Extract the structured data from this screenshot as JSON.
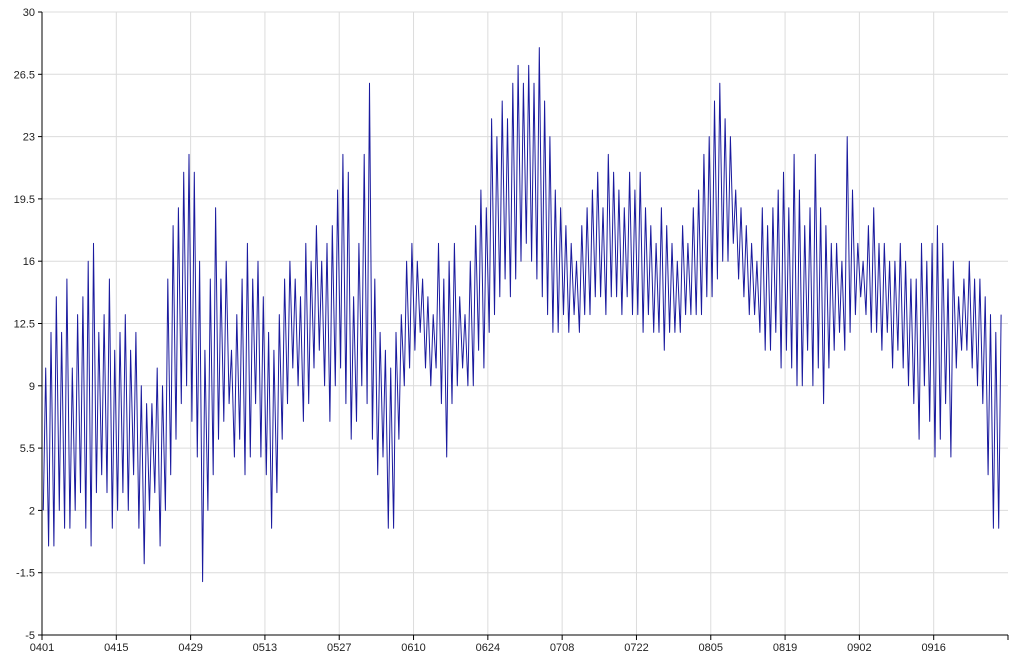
{
  "colors": {
    "background": "#ffffff",
    "grid": "#dcdcdc",
    "axis": "#000000",
    "series": "#1a1a9e"
  },
  "chart_data": {
    "type": "line",
    "title": "",
    "xlabel": "",
    "ylabel": "",
    "ylim": [
      -5,
      30
    ],
    "xlim": [
      "0401",
      "0929"
    ],
    "grid": true,
    "legend": "none",
    "yticks": [
      "-5",
      "-1.5",
      "2",
      "5.5",
      "9",
      "12.5",
      "16",
      "19.5",
      "23",
      "26.5",
      "30"
    ],
    "xticks": [
      "0401",
      "0415",
      "0429",
      "0513",
      "0527",
      "0610",
      "0624",
      "0708",
      "0722",
      "0805",
      "0819",
      "0902",
      "0916"
    ],
    "series": [
      {
        "x": [
          "0401",
          "0402",
          "0403",
          "0404",
          "0405",
          "0406",
          "0407",
          "0408",
          "0409",
          "0410",
          "0411",
          "0412",
          "0413",
          "0414",
          "0415",
          "0416",
          "0417",
          "0418",
          "0419",
          "0420",
          "0421",
          "0422",
          "0423",
          "0424",
          "0425",
          "0426",
          "0427",
          "0428",
          "0429",
          "0430",
          "0501",
          "0502",
          "0503",
          "0504",
          "0505",
          "0506",
          "0507",
          "0508",
          "0509",
          "0510",
          "0511",
          "0512",
          "0513",
          "0514",
          "0515",
          "0516",
          "0517",
          "0518",
          "0519",
          "0520",
          "0521",
          "0522",
          "0523",
          "0524",
          "0525",
          "0526",
          "0527",
          "0528",
          "0529",
          "0530",
          "0531",
          "0601",
          "0602",
          "0603",
          "0604",
          "0605",
          "0606",
          "0607",
          "0608",
          "0609",
          "0610",
          "0611",
          "0612",
          "0613",
          "0614",
          "0615",
          "0616",
          "0617",
          "0618",
          "0619",
          "0620",
          "0621",
          "0622",
          "0623",
          "0624",
          "0625",
          "0626",
          "0627",
          "0628",
          "0629",
          "0630",
          "0701",
          "0702",
          "0703",
          "0704",
          "0705",
          "0706",
          "0707",
          "0708",
          "0709",
          "0710",
          "0711",
          "0712",
          "0713",
          "0714",
          "0715",
          "0716",
          "0717",
          "0718",
          "0719",
          "0720",
          "0721",
          "0722",
          "0723",
          "0724",
          "0725",
          "0726",
          "0727",
          "0728",
          "0729",
          "0730",
          "0731",
          "0801",
          "0802",
          "0803",
          "0804",
          "0805",
          "0806",
          "0807",
          "0808",
          "0809",
          "0810",
          "0811",
          "0812",
          "0813",
          "0814",
          "0815",
          "0816",
          "0817",
          "0818",
          "0819",
          "0820",
          "0821",
          "0822",
          "0823",
          "0824",
          "0825",
          "0826",
          "0827",
          "0828",
          "0829",
          "0830",
          "0831",
          "0901",
          "0902",
          "0903",
          "0904",
          "0905",
          "0906",
          "0907",
          "0908",
          "0909",
          "0910",
          "0911",
          "0912",
          "0913",
          "0914",
          "0915",
          "0916",
          "0917",
          "0918",
          "0919",
          "0920",
          "0921",
          "0922",
          "0923",
          "0924",
          "0925",
          "0926",
          "0927",
          "0928",
          "0929"
        ],
        "min": [
          2,
          0,
          0,
          2,
          1,
          1,
          2,
          3,
          1,
          0,
          3,
          4,
          3,
          1,
          2,
          3,
          2,
          4,
          1,
          -1,
          2,
          3,
          0,
          2,
          4,
          6,
          8,
          9,
          7,
          5,
          -2,
          2,
          4,
          6,
          7,
          8,
          5,
          6,
          4,
          5,
          8,
          5,
          4,
          1,
          3,
          6,
          8,
          10,
          9,
          7,
          8,
          10,
          11,
          9,
          7,
          9,
          10,
          8,
          6,
          7,
          9,
          8,
          6,
          4,
          5,
          1,
          1,
          6,
          9,
          10,
          11,
          12,
          10,
          9,
          10,
          8,
          5,
          8,
          9,
          10,
          9,
          9,
          11,
          10,
          12,
          13,
          14,
          15,
          14,
          15,
          16,
          17,
          16,
          15,
          14,
          13,
          12,
          12,
          13,
          12,
          13,
          12,
          13,
          13,
          14,
          14,
          13,
          14,
          14,
          13,
          14,
          13,
          13,
          12,
          13,
          12,
          12,
          11,
          12,
          12,
          12,
          13,
          13,
          13,
          13,
          14,
          14,
          15,
          16,
          16,
          17,
          15,
          14,
          13,
          13,
          12,
          11,
          11,
          12,
          10,
          11,
          10,
          9,
          9,
          11,
          9,
          10,
          8,
          10,
          11,
          12,
          11,
          12,
          13,
          14,
          13,
          12,
          12,
          11,
          12,
          10,
          11,
          10,
          9,
          8,
          6,
          9,
          7,
          5,
          6,
          8,
          5,
          10,
          11,
          11,
          10,
          9,
          8,
          4,
          1,
          1
        ],
        "max": [
          10,
          12,
          14,
          12,
          15,
          10,
          13,
          14,
          16,
          17,
          12,
          13,
          15,
          11,
          12,
          13,
          11,
          12,
          9,
          8,
          8,
          10,
          9,
          15,
          18,
          19,
          21,
          22,
          21,
          16,
          11,
          15,
          19,
          15,
          16,
          11,
          13,
          15,
          17,
          15,
          16,
          14,
          12,
          11,
          13,
          15,
          16,
          15,
          14,
          17,
          16,
          18,
          16,
          17,
          18,
          20,
          22,
          21,
          14,
          17,
          22,
          26,
          15,
          12,
          11,
          10,
          12,
          13,
          16,
          17,
          16,
          15,
          14,
          13,
          17,
          15,
          16,
          17,
          14,
          13,
          16,
          18,
          20,
          19,
          24,
          23,
          25,
          24,
          26,
          27,
          26,
          27,
          26,
          28,
          25,
          23,
          20,
          19,
          18,
          17,
          16,
          18,
          19,
          20,
          21,
          19,
          22,
          21,
          20,
          19,
          21,
          20,
          21,
          19,
          18,
          17,
          19,
          18,
          17,
          16,
          18,
          17,
          19,
          20,
          22,
          23,
          25,
          26,
          24,
          23,
          20,
          19,
          18,
          17,
          16,
          19,
          18,
          19,
          20,
          21,
          19,
          22,
          20,
          18,
          19,
          22,
          19,
          18,
          17,
          17,
          16,
          23,
          20,
          17,
          16,
          18,
          19,
          17,
          17,
          16,
          16,
          17,
          16,
          15,
          15,
          17,
          16,
          17,
          18,
          17,
          15,
          16,
          14,
          15,
          16,
          15,
          15,
          14,
          13,
          12,
          13
        ]
      }
    ]
  }
}
